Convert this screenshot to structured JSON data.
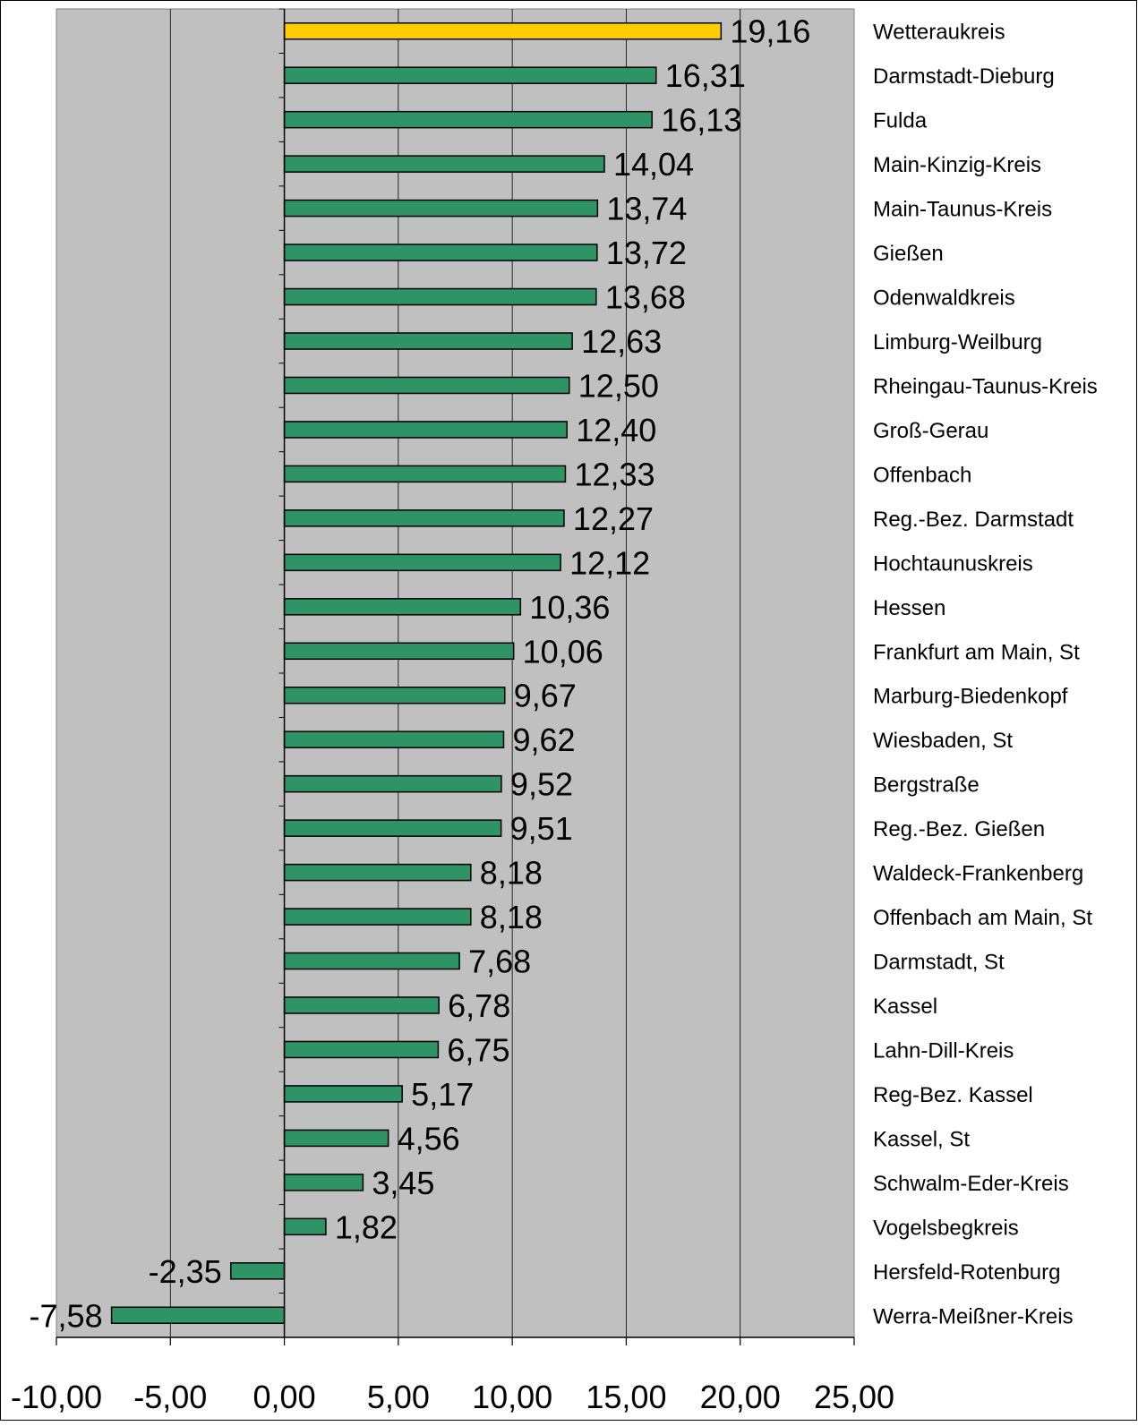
{
  "chart_data": {
    "type": "bar",
    "orientation": "horizontal",
    "categories": [
      "Wetteraukreis",
      "Darmstadt-Dieburg",
      "Fulda",
      "Main-Kinzig-Kreis",
      "Main-Taunus-Kreis",
      "Gießen",
      "Odenwaldkreis",
      "Limburg-Weilburg",
      "Rheingau-Taunus-Kreis",
      "Groß-Gerau",
      "Offenbach",
      "Reg.-Bez. Darmstadt",
      "Hochtaunuskreis",
      "Hessen",
      "Frankfurt am Main, St",
      "Marburg-Biedenkopf",
      "Wiesbaden, St",
      "Bergstraße",
      "Reg.-Bez. Gießen",
      "Waldeck-Frankenberg",
      "Offenbach am Main, St",
      "Darmstadt, St",
      "Kassel",
      "Lahn-Dill-Kreis",
      "Reg-Bez. Kassel",
      "Kassel, St",
      "Schwalm-Eder-Kreis",
      "Vogelsbegkreis",
      "Hersfeld-Rotenburg",
      "Werra-Meißner-Kreis"
    ],
    "values": [
      19.16,
      16.31,
      16.13,
      14.04,
      13.74,
      13.72,
      13.68,
      12.63,
      12.5,
      12.4,
      12.33,
      12.27,
      12.12,
      10.36,
      10.06,
      9.67,
      9.62,
      9.52,
      9.51,
      8.18,
      8.18,
      7.68,
      6.78,
      6.75,
      5.17,
      4.56,
      3.45,
      1.82,
      -2.35,
      -7.58
    ],
    "value_labels": [
      "19,16",
      "16,31",
      "16,13",
      "14,04",
      "13,74",
      "13,72",
      "13,68",
      "12,63",
      "12,50",
      "12,40",
      "12,33",
      "12,27",
      "12,12",
      "10,36",
      "10,06",
      "9,67",
      "9,62",
      "9,52",
      "9,51",
      "8,18",
      "8,18",
      "7,68",
      "6,78",
      "6,75",
      "5,17",
      "4,56",
      "3,45",
      "1,82",
      "-2,35",
      "-7,58"
    ],
    "highlight_index": 0,
    "xlim": [
      -10,
      25
    ],
    "x_ticks": [
      -10,
      -5,
      0,
      5,
      10,
      15,
      20,
      25
    ],
    "x_tick_labels": [
      "-10,00",
      "-5,00",
      "0,00",
      "5,00",
      "10,00",
      "15,00",
      "20,00",
      "25,00"
    ],
    "grid": "vertical",
    "legend": "none",
    "colors": {
      "bar": "#2e9466",
      "highlight": "#ffcc00",
      "plot_background": "#c0c0c0",
      "grid": "#000000"
    },
    "title": "",
    "xlabel": "",
    "ylabel": ""
  }
}
